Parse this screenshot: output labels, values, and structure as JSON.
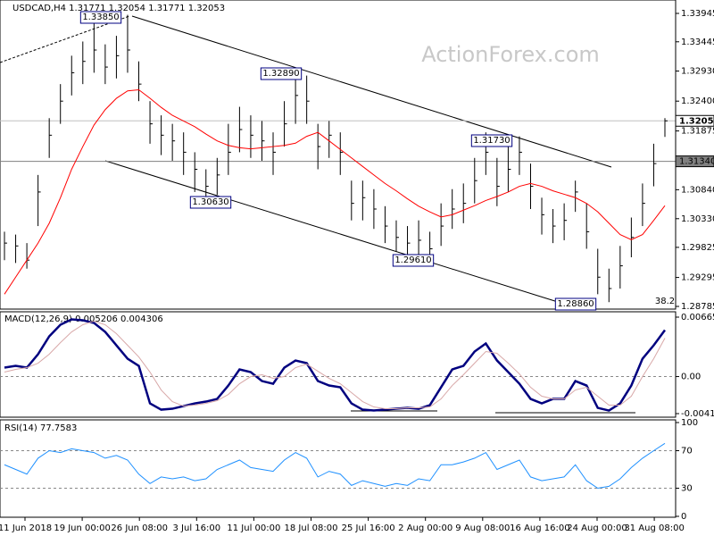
{
  "chart_data": [
    {
      "type": "ohlc",
      "title": "USDCAD,H4  1.31771 1.32054 1.31771 1.32053",
      "watermark": "ActionForex.com",
      "color": "#000000",
      "grid": false,
      "high": [
        1.301,
        1.3005,
        1.299,
        1.311,
        1.321,
        1.327,
        1.332,
        1.3345,
        1.3385,
        1.334,
        1.3355,
        1.3392,
        1.331,
        1.324,
        1.3215,
        1.32,
        1.3185,
        1.315,
        1.312,
        1.314,
        1.32,
        1.323,
        1.3215,
        1.3205,
        1.3185,
        1.324,
        1.3289,
        1.3285,
        1.32,
        1.3205,
        1.3185,
        1.31,
        1.31,
        1.3085,
        1.3055,
        1.303,
        1.302,
        1.303,
        1.301,
        1.306,
        1.3085,
        1.3095,
        1.314,
        1.3185,
        1.314,
        1.316,
        1.3178,
        1.313,
        1.307,
        1.305,
        1.306,
        1.31,
        1.306,
        1.298,
        1.2945,
        1.2985,
        1.3035,
        1.3095,
        1.3165,
        1.321
      ],
      "low": [
        1.296,
        1.2955,
        1.2945,
        1.302,
        1.314,
        1.32,
        1.325,
        1.327,
        1.329,
        1.327,
        1.328,
        1.329,
        1.324,
        1.3165,
        1.3145,
        1.3135,
        1.311,
        1.308,
        1.3063,
        1.3075,
        1.311,
        1.315,
        1.314,
        1.3135,
        1.311,
        1.316,
        1.32,
        1.32,
        1.312,
        1.314,
        1.311,
        1.303,
        1.303,
        1.3015,
        1.299,
        1.2975,
        1.2965,
        1.297,
        1.2961,
        1.2985,
        1.3015,
        1.3025,
        1.306,
        1.311,
        1.3055,
        1.308,
        1.311,
        1.305,
        1.3005,
        1.299,
        1.2995,
        1.3045,
        1.298,
        1.29,
        1.2886,
        1.291,
        1.2965,
        1.302,
        1.309,
        1.3177
      ],
      "close": [
        1.299,
        1.2985,
        1.296,
        1.308,
        1.318,
        1.324,
        1.329,
        1.331,
        1.333,
        1.33,
        1.332,
        1.333,
        1.327,
        1.32,
        1.318,
        1.317,
        1.315,
        1.312,
        1.309,
        1.311,
        1.315,
        1.319,
        1.318,
        1.317,
        1.315,
        1.32,
        1.325,
        1.324,
        1.316,
        1.318,
        1.315,
        1.306,
        1.307,
        1.305,
        1.302,
        1.3,
        1.299,
        1.2995,
        1.298,
        1.302,
        1.305,
        1.306,
        1.31,
        1.315,
        1.309,
        1.312,
        1.315,
        1.309,
        1.304,
        1.302,
        1.303,
        1.308,
        1.301,
        1.293,
        1.291,
        1.295,
        1.3,
        1.306,
        1.313,
        1.32053
      ],
      "ma": {
        "color": "#ff0000",
        "values": [
          1.29,
          1.293,
          1.296,
          1.299,
          1.3025,
          1.307,
          1.312,
          1.316,
          1.3198,
          1.3225,
          1.3245,
          1.3258,
          1.326,
          1.3245,
          1.3229,
          1.3215,
          1.3205,
          1.3195,
          1.3182,
          1.317,
          1.3162,
          1.3158,
          1.3156,
          1.3158,
          1.316,
          1.3162,
          1.3166,
          1.3178,
          1.3185,
          1.317,
          1.3155,
          1.314,
          1.3125,
          1.311,
          1.3095,
          1.3082,
          1.3068,
          1.3055,
          1.3045,
          1.3036,
          1.304,
          1.3048,
          1.3056,
          1.3065,
          1.3072,
          1.308,
          1.309,
          1.3095,
          1.309,
          1.3082,
          1.3076,
          1.307,
          1.306,
          1.3045,
          1.3025,
          1.3005,
          1.2996,
          1.3005,
          1.303,
          1.3056
        ]
      },
      "ylim": [
        1.28785,
        1.33945
      ],
      "yticks": [
        1.28785,
        1.29295,
        1.29825,
        {
          "value": 1.3033,
          "label": "1.30330"
        },
        {
          "value": 1.3084,
          "label": "1.30840"
        },
        1.31875,
        {
          "value": 1.324,
          "label": "1.32400"
        },
        {
          "value": 1.3293,
          "label": "1.32930"
        },
        1.33445,
        1.33945
      ],
      "levels": [
        {
          "value": 1.32053,
          "label": "1.32053",
          "color": "#c0c0c0"
        },
        {
          "value": 1.3134,
          "label": "1.31340",
          "color": "#808080"
        }
      ],
      "annotations": [
        "1.33850",
        "1.32890",
        "1.30630",
        "1.29610",
        "1.31730",
        "1.28860",
        "38.2"
      ],
      "x_labels": [
        "11 Jun 2018",
        "19 Jun 00:00",
        "26 Jun 08:00",
        "3 Jul 16:00",
        "11 Jul 00:00",
        "18 Jul 08:00",
        "25 Jul 16:00",
        "2 Aug 00:00",
        "9 Aug 08:00",
        "16 Aug 16:00",
        "24 Aug 00:00",
        "31 Aug 08:00"
      ]
    },
    {
      "type": "line",
      "title": "MACD(12,26,9) 0.005206 0.004306",
      "grid": true,
      "series": [
        {
          "color": "#00007f",
          "width": 2.5,
          "values": [
            0.001,
            0.0012,
            0.001,
            0.0025,
            0.0045,
            0.0058,
            0.0064,
            0.0063,
            0.006,
            0.005,
            0.0035,
            0.002,
            0.0012,
            -0.003,
            -0.0037,
            -0.0036,
            -0.0033,
            -0.003,
            -0.0028,
            -0.0025,
            -0.001,
            0.0008,
            0.0005,
            -0.0005,
            -0.0008,
            0.001,
            0.0018,
            0.0015,
            -0.0005,
            -0.001,
            -0.0012,
            -0.003,
            -0.0037,
            -0.0038,
            -0.0037,
            -0.0036,
            -0.0035,
            -0.0036,
            -0.0032,
            -0.0012,
            0.0008,
            0.0012,
            0.0028,
            0.0037,
            0.0018,
            0.0005,
            -0.0008,
            -0.0025,
            -0.003,
            -0.0025,
            -0.0025,
            -0.0005,
            -0.001,
            -0.0035,
            -0.0038,
            -0.003,
            -0.001,
            0.002,
            0.0035,
            0.005206
          ]
        },
        {
          "color": "#d8a8a8",
          "width": 1,
          "values": [
            0.0005,
            0.0008,
            0.001,
            0.0015,
            0.0025,
            0.0038,
            0.005,
            0.0058,
            0.0062,
            0.0058,
            0.0048,
            0.0035,
            0.0022,
            0.0005,
            -0.0015,
            -0.0028,
            -0.0033,
            -0.0032,
            -0.003,
            -0.0027,
            -0.002,
            -0.0008,
            0.0,
            0.0002,
            -0.0002,
            0.0,
            0.001,
            0.0014,
            0.0006,
            -0.0002,
            -0.0008,
            -0.0018,
            -0.0028,
            -0.0034,
            -0.0036,
            -0.0036,
            -0.0035,
            -0.0035,
            -0.0034,
            -0.0025,
            -0.001,
            0.0002,
            0.0015,
            0.0028,
            0.0026,
            0.0015,
            0.0003,
            -0.0012,
            -0.0022,
            -0.0025,
            -0.0025,
            -0.0015,
            -0.0012,
            -0.0022,
            -0.0032,
            -0.0032,
            -0.0022,
            0.0,
            0.002,
            0.004306
          ]
        }
      ],
      "ylim": [
        -0.004145,
        0.006651
      ],
      "yticks": [
        -0.004145,
        {
          "value": 0,
          "label": "0.00"
        },
        0.006651
      ]
    },
    {
      "type": "line",
      "title": "RSI(14) 77.7583",
      "grid": true,
      "series": [
        {
          "color": "#1e90ff",
          "width": 1,
          "values": [
            55,
            50,
            45,
            62,
            70,
            68,
            72,
            70,
            68,
            62,
            65,
            60,
            45,
            35,
            42,
            40,
            42,
            38,
            40,
            50,
            55,
            60,
            52,
            50,
            48,
            60,
            68,
            62,
            42,
            48,
            45,
            33,
            38,
            35,
            32,
            35,
            33,
            40,
            38,
            55,
            55,
            58,
            62,
            68,
            50,
            55,
            60,
            42,
            38,
            40,
            42,
            55,
            38,
            30,
            32,
            40,
            52,
            62,
            70,
            77.7583
          ]
        }
      ],
      "ylim": [
        0,
        100
      ],
      "yticks": [
        0,
        30,
        70,
        100
      ]
    }
  ]
}
